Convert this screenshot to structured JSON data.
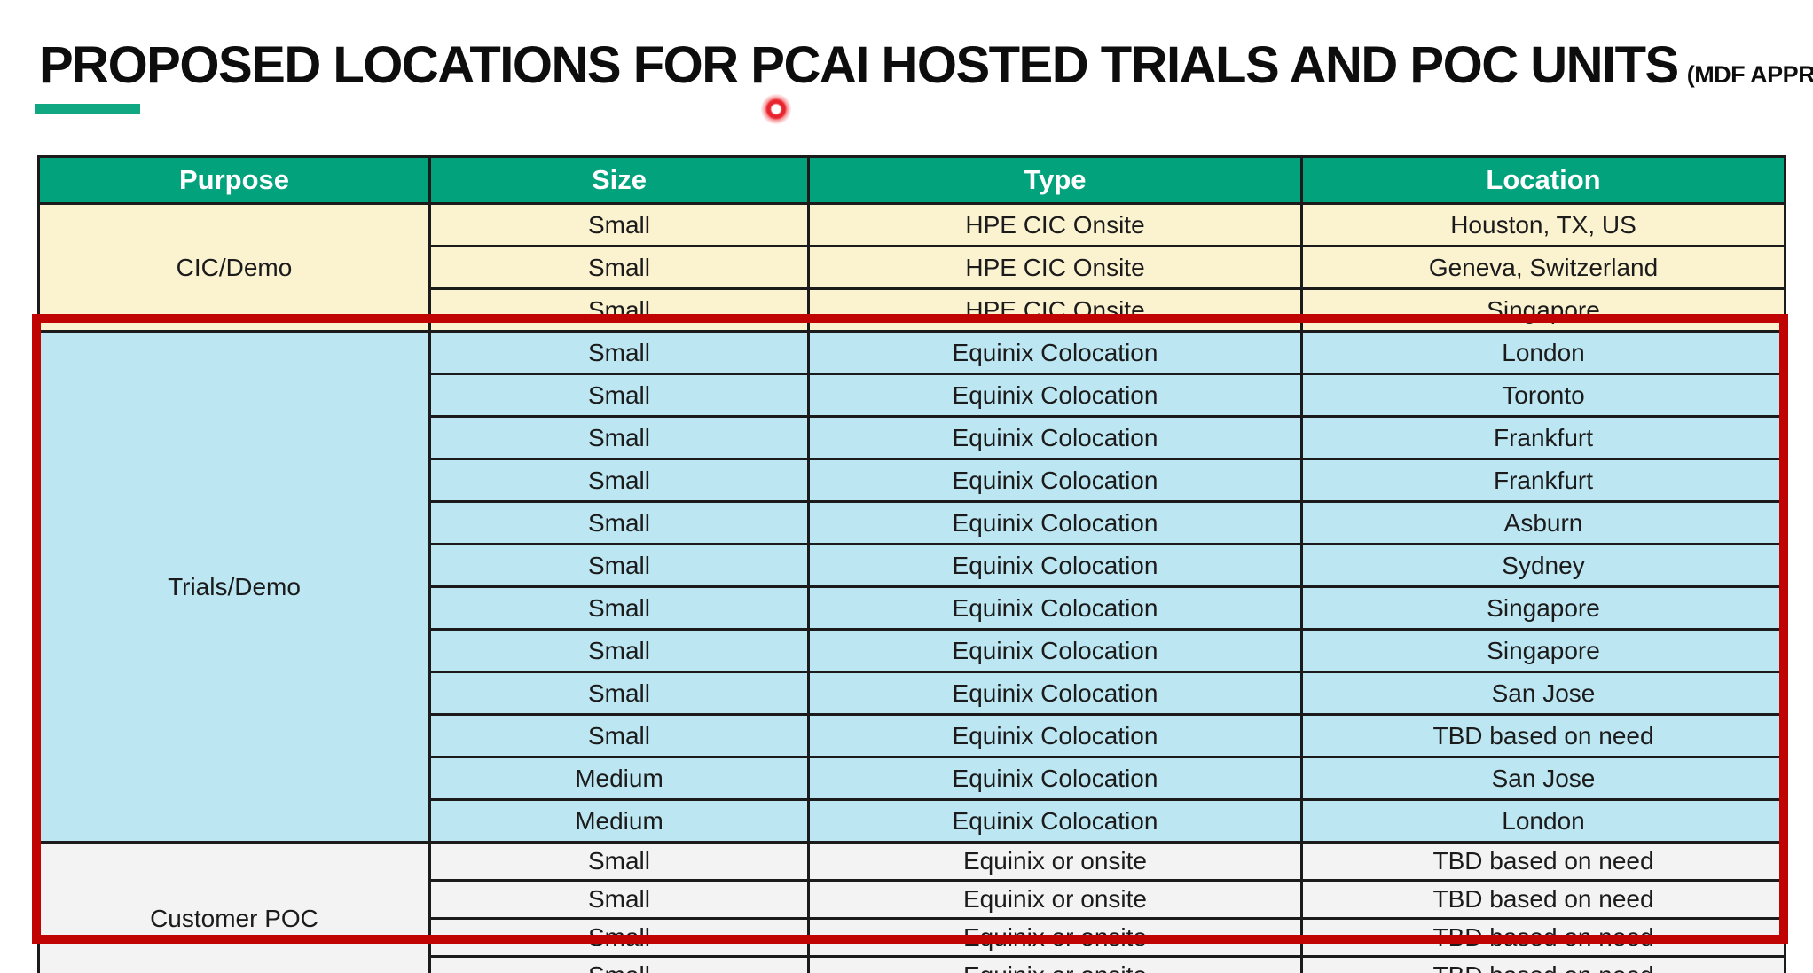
{
  "title": {
    "main": "PROPOSED LOCATIONS FOR PCAI HOSTED TRIALS AND POC UNITS",
    "suffix": "(MDF APPROVED)"
  },
  "colors": {
    "header_green": "#01A27C",
    "underline_green": "#0FA883",
    "cic_demo_bg": "#FBF2CF",
    "trials_demo_bg": "#BCE6F1",
    "customer_poc_bg": "#F3F3F3",
    "highlight_red": "#C00404",
    "laser_red": "#ED1C24"
  },
  "table": {
    "columns": [
      "Purpose",
      "Size",
      "Type",
      "Location"
    ],
    "sections": [
      {
        "purpose": "CIC/Demo",
        "bg": "#FBF2CF",
        "rows": [
          {
            "size": "Small",
            "type": "HPE CIC Onsite",
            "location": "Houston, TX, US"
          },
          {
            "size": "Small",
            "type": "HPE CIC Onsite",
            "location": "Geneva, Switzerland"
          },
          {
            "size": "Small",
            "type": "HPE CIC Onsite",
            "location": "Singapore"
          }
        ]
      },
      {
        "purpose": "Trials/Demo",
        "bg": "#BCE6F1",
        "rows": [
          {
            "size": "Small",
            "type": "Equinix Colocation",
            "location": "London"
          },
          {
            "size": "Small",
            "type": "Equinix Colocation",
            "location": "Toronto"
          },
          {
            "size": "Small",
            "type": "Equinix Colocation",
            "location": "Frankfurt"
          },
          {
            "size": "Small",
            "type": "Equinix Colocation",
            "location": "Frankfurt"
          },
          {
            "size": "Small",
            "type": "Equinix Colocation",
            "location": "Asburn"
          },
          {
            "size": "Small",
            "type": "Equinix Colocation",
            "location": "Sydney"
          },
          {
            "size": "Small",
            "type": "Equinix Colocation",
            "location": "Singapore"
          },
          {
            "size": "Small",
            "type": "Equinix Colocation",
            "location": "Singapore"
          },
          {
            "size": "Small",
            "type": "Equinix Colocation",
            "location": "San Jose"
          },
          {
            "size": "Small",
            "type": "Equinix Colocation",
            "location": "TBD based on need"
          },
          {
            "size": "Medium",
            "type": "Equinix Colocation",
            "location": "San Jose"
          },
          {
            "size": "Medium",
            "type": "Equinix Colocation",
            "location": "London"
          }
        ]
      },
      {
        "purpose": "Customer POC",
        "bg": "#F3F3F3",
        "rows": [
          {
            "size": "Small",
            "type": "Equinix or onsite",
            "location": "TBD based on need"
          },
          {
            "size": "Small",
            "type": "Equinix or onsite",
            "location": "TBD based on need"
          },
          {
            "size": "Small",
            "type": "Equinix or onsite",
            "location": "TBD based on need"
          },
          {
            "size": "Small",
            "type": "Equinix or onsite",
            "location": "TBD based on need"
          }
        ]
      }
    ]
  },
  "annotations": {
    "highlight_box": "red rectangle around Trials/Demo and Customer POC sections",
    "laser_pointer": "red laser pointer dot below title"
  }
}
